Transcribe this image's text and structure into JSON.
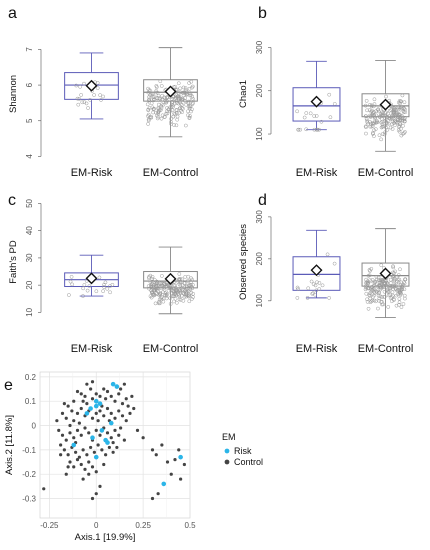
{
  "chart_data": [
    {
      "panel": "a",
      "type": "box",
      "ylabel": "Shannon",
      "ylim": [
        3.9,
        7.6
      ],
      "yticks": [
        4,
        5,
        6,
        7
      ],
      "categories": [
        "EM-Risk",
        "EM-Control"
      ],
      "boxes": [
        {
          "name": "EM-Risk",
          "min": 5.05,
          "q1": 5.6,
          "median": 6.0,
          "q3": 6.35,
          "max": 6.9,
          "mean": 5.98,
          "n": 20,
          "color": "#5b5bb8"
        },
        {
          "name": "EM-Control",
          "min": 4.55,
          "q1": 5.55,
          "median": 5.8,
          "q3": 6.15,
          "max": 7.05,
          "mean": 5.82,
          "n": 200,
          "color": "#888888"
        }
      ]
    },
    {
      "panel": "b",
      "type": "box",
      "ylabel": "Chao1",
      "ylim": [
        40,
        345
      ],
      "yticks": [
        100,
        200,
        300
      ],
      "categories": [
        "EM-Risk",
        "EM-Control"
      ],
      "boxes": [
        {
          "name": "EM-Risk",
          "min": 110,
          "q1": 130,
          "median": 165,
          "q3": 207,
          "max": 268,
          "mean": 175,
          "n": 20,
          "color": "#5b5bb8"
        },
        {
          "name": "EM-Control",
          "min": 60,
          "q1": 140,
          "median": 165,
          "q3": 193,
          "max": 270,
          "mean": 168,
          "n": 200,
          "color": "#888888"
        }
      ]
    },
    {
      "panel": "c",
      "type": "box",
      "ylabel": "Faith's PD",
      "ylim": [
        5,
        52
      ],
      "yticks": [
        10,
        20,
        30,
        40,
        50
      ],
      "categories": [
        "EM-Risk",
        "EM-Control"
      ],
      "boxes": [
        {
          "name": "EM-Risk",
          "min": 16,
          "q1": 19.5,
          "median": 22,
          "q3": 24.5,
          "max": 31,
          "mean": 22.5,
          "n": 20,
          "color": "#5b5bb8"
        },
        {
          "name": "EM-Control",
          "min": 9.5,
          "q1": 19,
          "median": 21.5,
          "q3": 25,
          "max": 34,
          "mean": 22.3,
          "n": 200,
          "color": "#888888"
        }
      ]
    },
    {
      "panel": "d",
      "type": "box",
      "ylabel": "Observed species",
      "ylim": [
        40,
        345
      ],
      "yticks": [
        100,
        200,
        300
      ],
      "categories": [
        "EM-Risk",
        "EM-Control"
      ],
      "boxes": [
        {
          "name": "EM-Risk",
          "min": 107,
          "q1": 125,
          "median": 163,
          "q3": 205,
          "max": 268,
          "mean": 173,
          "n": 20,
          "color": "#5b5bb8"
        },
        {
          "name": "EM-Control",
          "min": 60,
          "q1": 135,
          "median": 160,
          "q3": 190,
          "max": 272,
          "mean": 165,
          "n": 200,
          "color": "#888888"
        }
      ]
    },
    {
      "panel": "e",
      "type": "scatter",
      "xlabel": "Axis.1   [19.9%]",
      "ylabel": "Axis.2   [11.8%]",
      "xlim": [
        -0.3,
        0.5
      ],
      "ylim": [
        -0.38,
        0.22
      ],
      "xticks": [
        -0.25,
        0,
        0.25,
        0.5
      ],
      "xtick_labels": [
        "-0.25",
        "0",
        "0.25",
        "0.5"
      ],
      "yticks": [
        0.2,
        0.1,
        0,
        -0.1,
        -0.2,
        -0.3
      ],
      "ytick_labels": [
        "0.2",
        "0.1",
        "0",
        "-0.1",
        "-0.2",
        "-0.3"
      ],
      "grid": true,
      "legend": {
        "title": "EM",
        "placement": "right"
      },
      "series": [
        {
          "name": "Risk",
          "color": "#2bb5e8",
          "points": [
            [
              0.09,
              0.17
            ],
            [
              0.11,
              0.16
            ],
            [
              0.0,
              0.1
            ],
            [
              0.02,
              0.09
            ],
            [
              -0.05,
              0.05
            ],
            [
              -0.02,
              -0.05
            ],
            [
              0.05,
              -0.06
            ],
            [
              0.08,
              0.01
            ],
            [
              -0.12,
              -0.08
            ],
            [
              0.0,
              -0.13
            ],
            [
              0.06,
              -0.07
            ],
            [
              0.45,
              -0.13
            ],
            [
              0.36,
              -0.24
            ],
            [
              0.0,
              0.08
            ],
            [
              0.03,
              -0.02
            ],
            [
              -0.03,
              0.07
            ]
          ]
        },
        {
          "name": "Control",
          "color": "#444444",
          "points": [
            [
              -0.1,
              0.14
            ],
            [
              -0.08,
              0.13
            ],
            [
              -0.06,
              0.12
            ],
            [
              -0.12,
              0.1
            ],
            [
              -0.15,
              0.08
            ],
            [
              -0.05,
              0.09
            ],
            [
              -0.02,
              0.11
            ],
            [
              0.0,
              0.13
            ],
            [
              0.02,
              0.12
            ],
            [
              0.04,
              0.15
            ],
            [
              0.06,
              0.14
            ],
            [
              0.08,
              0.12
            ],
            [
              0.1,
              0.1
            ],
            [
              0.12,
              0.13
            ],
            [
              0.14,
              0.09
            ],
            [
              0.16,
              0.11
            ],
            [
              -0.18,
              0.05
            ],
            [
              -0.16,
              0.03
            ],
            [
              -0.14,
              0.0
            ],
            [
              -0.12,
              0.02
            ],
            [
              -0.1,
              0.05
            ],
            [
              -0.08,
              0.07
            ],
            [
              -0.06,
              0.04
            ],
            [
              -0.04,
              0.06
            ],
            [
              -0.02,
              0.03
            ],
            [
              0.0,
              0.05
            ],
            [
              0.02,
              0.06
            ],
            [
              0.04,
              0.04
            ],
            [
              0.06,
              0.07
            ],
            [
              0.08,
              0.05
            ],
            [
              0.1,
              0.03
            ],
            [
              0.12,
              0.06
            ],
            [
              0.14,
              0.04
            ],
            [
              0.16,
              0.02
            ],
            [
              0.18,
              0.05
            ],
            [
              0.2,
              0.07
            ],
            [
              -0.2,
              -0.02
            ],
            [
              -0.18,
              -0.04
            ],
            [
              -0.16,
              -0.06
            ],
            [
              -0.14,
              -0.03
            ],
            [
              -0.12,
              -0.05
            ],
            [
              -0.1,
              -0.02
            ],
            [
              -0.08,
              -0.04
            ],
            [
              -0.06,
              -0.01
            ],
            [
              -0.04,
              -0.03
            ],
            [
              -0.02,
              -0.06
            ],
            [
              0.0,
              -0.02
            ],
            [
              0.02,
              -0.04
            ],
            [
              0.04,
              -0.01
            ],
            [
              0.06,
              -0.03
            ],
            [
              0.08,
              -0.05
            ],
            [
              0.1,
              -0.02
            ],
            [
              0.12,
              -0.04
            ],
            [
              0.15,
              -0.06
            ],
            [
              -0.19,
              -0.08
            ],
            [
              -0.17,
              -0.1
            ],
            [
              -0.15,
              -0.12
            ],
            [
              -0.13,
              -0.09
            ],
            [
              -0.11,
              -0.11
            ],
            [
              -0.09,
              -0.13
            ],
            [
              -0.07,
              -0.1
            ],
            [
              -0.05,
              -0.12
            ],
            [
              -0.03,
              -0.09
            ],
            [
              -0.01,
              -0.11
            ],
            [
              0.01,
              -0.08
            ],
            [
              0.03,
              -0.1
            ],
            [
              0.05,
              -0.12
            ],
            [
              0.07,
              -0.09
            ],
            [
              0.09,
              -0.11
            ],
            [
              -0.14,
              -0.15
            ],
            [
              -0.12,
              -0.17
            ],
            [
              -0.1,
              -0.14
            ],
            [
              -0.08,
              -0.16
            ],
            [
              -0.06,
              -0.18
            ],
            [
              -0.04,
              -0.15
            ],
            [
              -0.02,
              -0.17
            ],
            [
              0.0,
              -0.19
            ],
            [
              -0.16,
              -0.2
            ],
            [
              -0.28,
              -0.26
            ],
            [
              -0.05,
              0.17
            ],
            [
              -0.02,
              0.18
            ],
            [
              0.15,
              0.17
            ],
            [
              0.13,
              0.15
            ],
            [
              0.22,
              -0.02
            ],
            [
              0.25,
              -0.05
            ],
            [
              0.3,
              -0.1
            ],
            [
              0.32,
              -0.12
            ],
            [
              0.35,
              -0.08
            ],
            [
              0.38,
              -0.15
            ],
            [
              0.42,
              -0.14
            ],
            [
              0.44,
              -0.1
            ],
            [
              0.47,
              -0.16
            ],
            [
              0.4,
              -0.2
            ],
            [
              0.45,
              -0.22
            ],
            [
              0.33,
              -0.28
            ],
            [
              0.3,
              -0.3
            ],
            [
              0.0,
              -0.28
            ],
            [
              -0.02,
              -0.3
            ],
            [
              0.02,
              -0.25
            ],
            [
              -0.07,
              -0.22
            ],
            [
              -0.11,
              -0.07
            ],
            [
              -0.09,
              0.01
            ],
            [
              -0.07,
              0.1
            ],
            [
              -0.03,
              0.15
            ],
            [
              0.01,
              0.02
            ],
            [
              0.03,
              0.08
            ],
            [
              0.05,
              0.11
            ],
            [
              0.07,
              0.02
            ],
            [
              0.09,
              -0.07
            ],
            [
              0.11,
              -0.09
            ],
            [
              -0.13,
              0.06
            ],
            [
              -0.17,
              0.09
            ],
            [
              -0.21,
              0.02
            ],
            [
              -0.19,
              -0.12
            ],
            [
              -0.15,
              -0.17
            ],
            [
              0.13,
              -0.01
            ],
            [
              0.17,
              0.08
            ],
            [
              0.19,
              0.12
            ],
            [
              -0.04,
              -0.2
            ],
            [
              0.04,
              -0.16
            ]
          ]
        }
      ]
    }
  ],
  "panels": {
    "a": {
      "letter": "a"
    },
    "b": {
      "letter": "b"
    },
    "c": {
      "letter": "c"
    },
    "d": {
      "letter": "d"
    },
    "e": {
      "letter": "e"
    }
  },
  "legend": {
    "title": "EM",
    "items": [
      "Risk",
      "Control"
    ]
  }
}
